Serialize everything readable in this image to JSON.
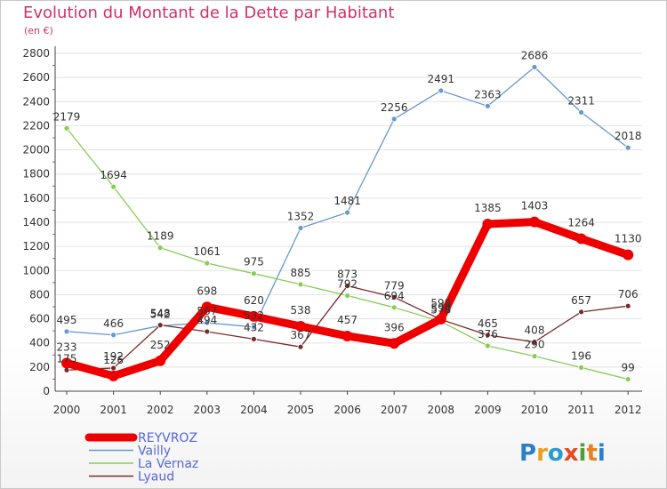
{
  "title": "Evolution du Montant de la Dette par Habitant",
  "subtitle": "(en €)",
  "logo_text": "Proxiti",
  "chart_data": {
    "type": "line",
    "title": "Evolution du Montant de la Dette par Habitant",
    "subtitle": "(en €)",
    "xlabel": "",
    "ylabel": "",
    "x": [
      "2000",
      "2001",
      "2002",
      "2003",
      "2004",
      "2005",
      "2006",
      "2007",
      "2008",
      "2009",
      "2010",
      "2011",
      "2012"
    ],
    "ylim": [
      0,
      2800
    ],
    "yticks": [
      0,
      200,
      400,
      600,
      800,
      1000,
      1200,
      1400,
      1600,
      1800,
      2000,
      2200,
      2400,
      2600,
      2800
    ],
    "grid": "horizontal",
    "legend_position": "bottom-left",
    "series": [
      {
        "name": "REYVROZ",
        "color": "#ee0000",
        "emphasis": true,
        "values": [
          233,
          126,
          252,
          698,
          620,
          538,
          457,
          396,
          598,
          1385,
          1403,
          1264,
          1130
        ]
      },
      {
        "name": "Vailly",
        "color": "#6699cc",
        "values": [
          495,
          466,
          542,
          567,
          532,
          1352,
          1481,
          2256,
          2491,
          2363,
          2686,
          2311,
          2018
        ]
      },
      {
        "name": "La Vernaz",
        "color": "#88cc55",
        "values": [
          2179,
          1694,
          1189,
          1061,
          975,
          885,
          792,
          694,
          578,
          376,
          290,
          196,
          99
        ]
      },
      {
        "name": "Lyaud",
        "color": "#7a2a2a",
        "values": [
          175,
          192,
          548,
          494,
          432,
          367,
          873,
          779,
          594,
          465,
          408,
          657,
          706
        ]
      }
    ],
    "data_labels": [
      {
        "series": 0,
        "text": [
          "233",
          "126",
          "252",
          "698",
          "620",
          "538",
          "457",
          "396",
          "598",
          "1385",
          "1403",
          "1264",
          "1130"
        ]
      },
      {
        "series": 1,
        "text": [
          "495",
          "466",
          "542",
          "567",
          "532",
          "1352",
          "1481",
          "2256",
          "2491",
          "2363",
          "2686",
          "2311",
          "2018"
        ]
      },
      {
        "series": 2,
        "text": [
          "2179",
          "1694",
          "1189",
          "1061",
          "975",
          "885",
          "792",
          "694",
          "578",
          "376",
          "290",
          "196",
          "99"
        ]
      },
      {
        "series": 3,
        "text": [
          "175",
          "192",
          "548",
          "494",
          "432",
          "367",
          "873",
          "779",
          "594",
          "465",
          "408",
          "657",
          "706"
        ]
      }
    ]
  }
}
